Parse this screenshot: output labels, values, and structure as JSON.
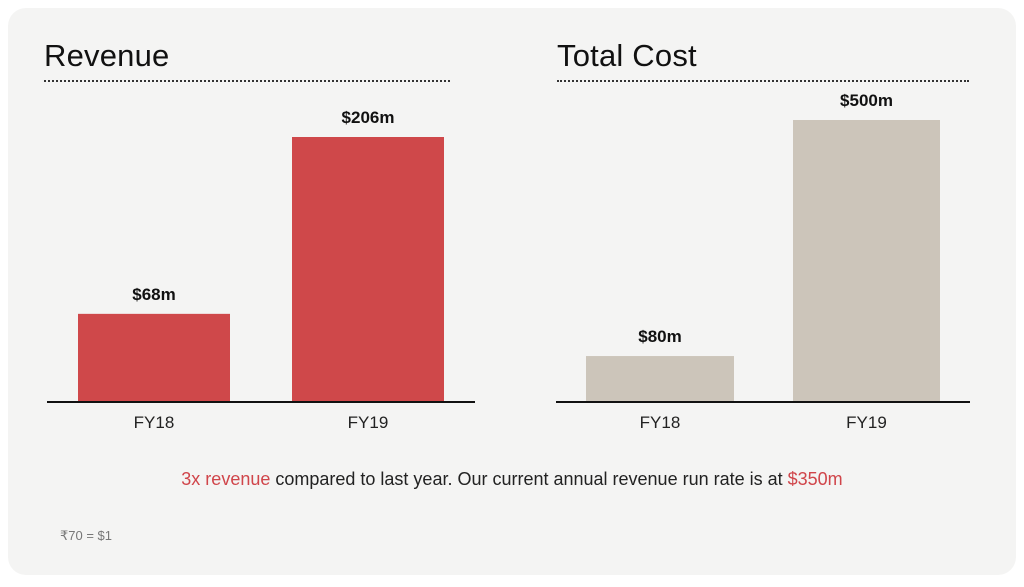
{
  "colors": {
    "revenue_bar": "#cf484a",
    "cost_bar": "#ccc5ba",
    "highlight": "#d0454a"
  },
  "chart_data": [
    {
      "type": "bar",
      "title": "Revenue",
      "categories": [
        "FY18",
        "FY19"
      ],
      "values": [
        68,
        206
      ],
      "data_labels": [
        "$68m",
        "$206m"
      ],
      "unit": "$m",
      "ylim": [
        0,
        206
      ],
      "grid": false,
      "legend": "none"
    },
    {
      "type": "bar",
      "title": "Total Cost",
      "categories": [
        "FY18",
        "FY19"
      ],
      "values": [
        80,
        500
      ],
      "data_labels": [
        "$80m",
        "$500m"
      ],
      "unit": "$m",
      "ylim": [
        0,
        500
      ],
      "grid": false,
      "legend": "none"
    }
  ],
  "caption": {
    "highlight_1": "3x revenue",
    "text_1": " compared to last year. Our current annual revenue run rate is at ",
    "highlight_2": "$350m"
  },
  "footnote": "₹70 = $1"
}
